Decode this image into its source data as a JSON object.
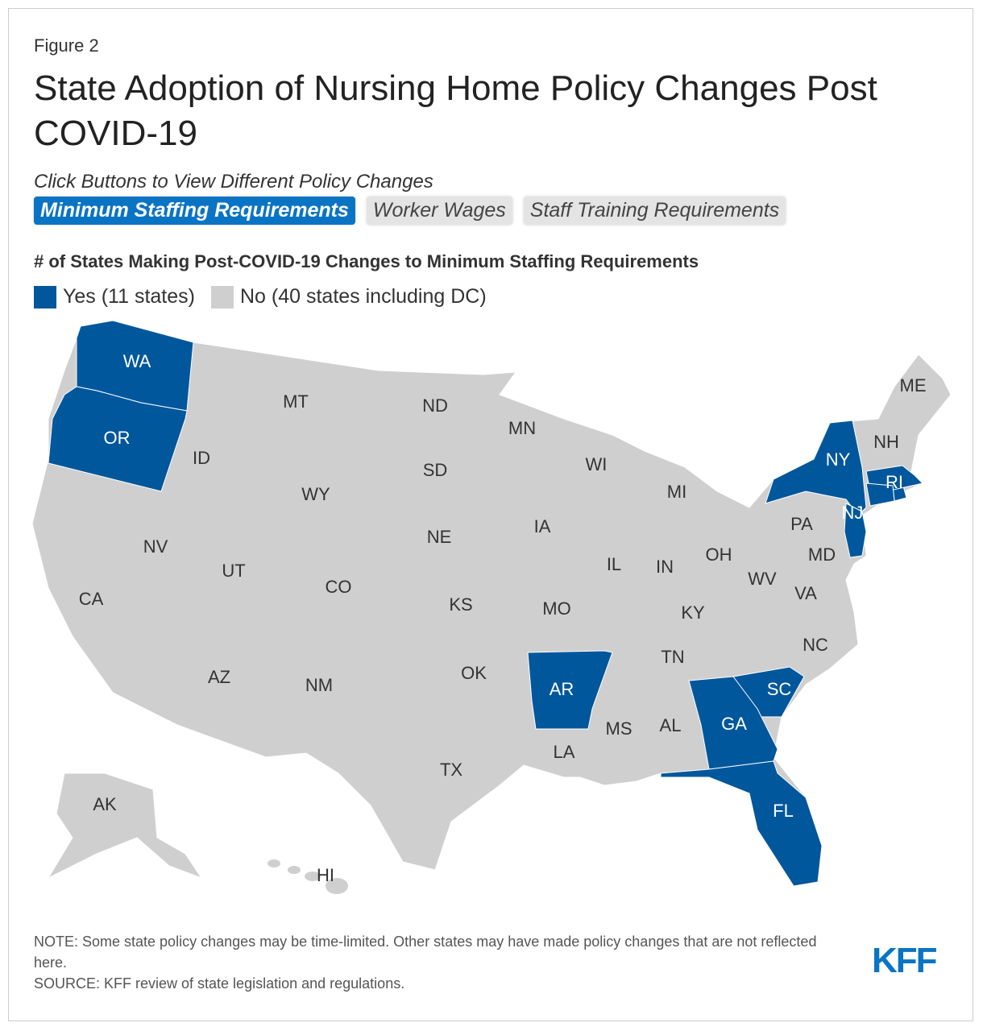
{
  "figure_label": "Figure 2",
  "title": "State Adoption of Nursing Home Policy Changes Post COVID-19",
  "instruction": "Click Buttons to View Different Policy Changes",
  "buttons": [
    {
      "label": "Minimum Staffing Requirements",
      "active": true
    },
    {
      "label": "Worker Wages",
      "active": false
    },
    {
      "label": "Staff Training Requirements",
      "active": false
    }
  ],
  "map": {
    "subtitle": "# of States Making Post-COVID-19 Changes to Minimum Staffing Requirements",
    "legend": [
      {
        "label": "Yes (11 states)",
        "color": "#00579c"
      },
      {
        "label": "No (40 states including DC)",
        "color": "#cfcfcf"
      }
    ],
    "states": [
      {
        "label": "WA",
        "status": 0
      },
      {
        "label": "OR",
        "status": 0
      },
      {
        "label": "ID",
        "status": 1
      },
      {
        "label": "MT",
        "status": 1
      },
      {
        "label": "ND",
        "status": 1
      },
      {
        "label": "MN",
        "status": 1
      },
      {
        "label": "WI",
        "status": 1
      },
      {
        "label": "MI",
        "status": 1
      },
      {
        "label": "NY",
        "status": 0
      },
      {
        "label": "ME",
        "status": 1
      },
      {
        "label": "NH",
        "status": 1
      },
      {
        "label": "RI",
        "status": 0
      },
      {
        "label": "NJ",
        "status": 0
      },
      {
        "label": "PA",
        "status": 1
      },
      {
        "label": "MD",
        "status": 1
      },
      {
        "label": "SD",
        "status": 1
      },
      {
        "label": "WY",
        "status": 1
      },
      {
        "label": "NE",
        "status": 1
      },
      {
        "label": "IA",
        "status": 1
      },
      {
        "label": "IL",
        "status": 1
      },
      {
        "label": "IN",
        "status": 1
      },
      {
        "label": "OH",
        "status": 1
      },
      {
        "label": "WV",
        "status": 1
      },
      {
        "label": "VA",
        "status": 1
      },
      {
        "label": "KY",
        "status": 1
      },
      {
        "label": "NC",
        "status": 1
      },
      {
        "label": "TN",
        "status": 1
      },
      {
        "label": "SC",
        "status": 0
      },
      {
        "label": "GA",
        "status": 0
      },
      {
        "label": "FL",
        "status": 0
      },
      {
        "label": "AR",
        "status": 0
      },
      {
        "label": "OK",
        "status": 1
      },
      {
        "label": "TX",
        "status": 1
      },
      {
        "label": "LA",
        "status": 1
      },
      {
        "label": "MS",
        "status": 1
      },
      {
        "label": "AL",
        "status": 1
      },
      {
        "label": "NV",
        "status": 1
      },
      {
        "label": "UT",
        "status": 1
      },
      {
        "label": "CO",
        "status": 1
      },
      {
        "label": "KS",
        "status": 1
      },
      {
        "label": "MO",
        "status": 1
      },
      {
        "label": "NM",
        "status": 1
      },
      {
        "label": "AZ",
        "status": 1
      },
      {
        "label": "CA",
        "status": 1
      },
      {
        "label": "AK",
        "status": 1
      },
      {
        "label": "HI",
        "status": 1
      },
      {
        "label": null,
        "status": 0
      },
      {
        "label": null,
        "status": 0
      }
    ]
  },
  "notes": [
    "NOTE: Some state policy changes may be time-limited. Other states may have made policy changes that are not reflected here.",
    "SOURCE: KFF review of state legislation and regulations."
  ],
  "logo": "KFF"
}
